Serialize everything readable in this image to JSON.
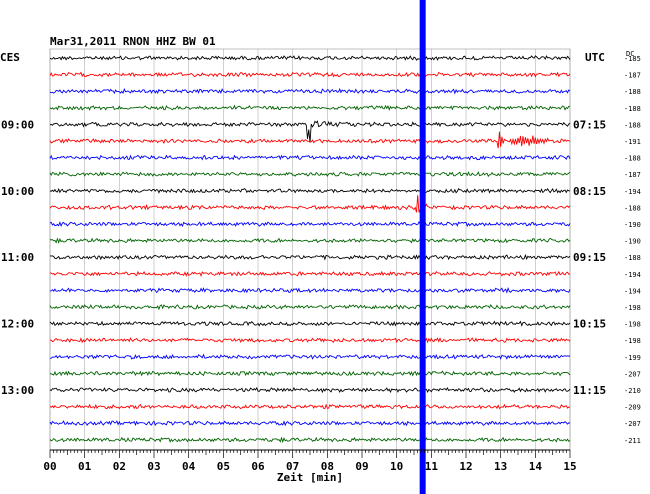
{
  "header": {
    "station": "Mar31,2011   RNON HHZ BW 01",
    "left_tz": "CES",
    "right_tz": "UTC",
    "dc_label": "DC"
  },
  "chart_data": {
    "type": "line",
    "title": "Mar31,2011   RNON HHZ BW 01",
    "xlabel": "Zeit [min]",
    "xlim": [
      0,
      15
    ],
    "x_ticks": [
      "00",
      "01",
      "02",
      "03",
      "04",
      "05",
      "06",
      "07",
      "08",
      "09",
      "10",
      "11",
      "12",
      "13",
      "14",
      "15"
    ],
    "trace_count": 24,
    "trace_minutes": 15,
    "trace_colors": [
      "#000000",
      "#ff0000",
      "#0000ff",
      "#006400"
    ],
    "left_time_labels": [
      {
        "trace": 4,
        "text": "09:00"
      },
      {
        "trace": 8,
        "text": "10:00"
      },
      {
        "trace": 12,
        "text": "11:00"
      },
      {
        "trace": 16,
        "text": "12:00"
      },
      {
        "trace": 20,
        "text": "13:00"
      }
    ],
    "right_time_labels": [
      {
        "trace": 4,
        "text": "07:15"
      },
      {
        "trace": 8,
        "text": "08:15"
      },
      {
        "trace": 12,
        "text": "09:15"
      },
      {
        "trace": 16,
        "text": "10:15"
      },
      {
        "trace": 20,
        "text": "11:15"
      }
    ],
    "dc_offsets": [
      -185,
      -187,
      -188,
      -188,
      -188,
      -191,
      -188,
      -187,
      -194,
      -188,
      -190,
      -190,
      -188,
      -194,
      -194,
      -198,
      -198,
      -198,
      -199,
      -207,
      -210,
      -209,
      -207,
      -211
    ],
    "marker": {
      "minute": 10.75,
      "color": "#0000ff"
    },
    "events": [
      {
        "trace": 4,
        "minute": 7.45,
        "amplitude": "large",
        "type": "spike"
      },
      {
        "trace": 5,
        "minute": 12.9,
        "amplitude": "large",
        "type": "decaying"
      },
      {
        "trace": 9,
        "minute": 10.6,
        "amplitude": "medium",
        "type": "spike"
      }
    ],
    "grid": true
  }
}
